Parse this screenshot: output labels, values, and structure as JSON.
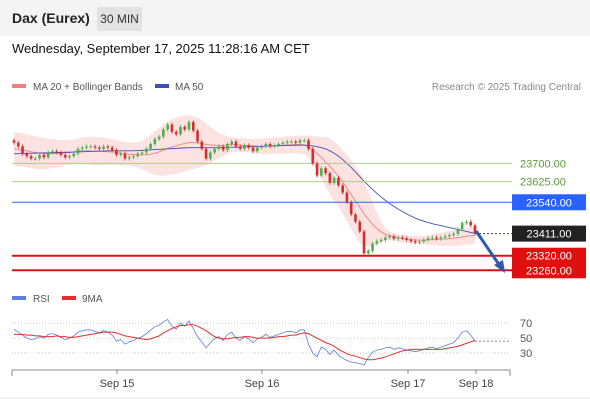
{
  "header": {
    "title": "Dax (Eurex)",
    "timeframe": "30 MIN",
    "datetime": "Wednesday, September 17, 2025 11:28:16 AM CET"
  },
  "colors": {
    "candle_up": "#4caf50",
    "candle_down": "#d32f2f",
    "bollinger_fill": "#fde2e2",
    "ma20": "#f08080",
    "ma50": "#3f51b5",
    "resistance": "#a8d08d",
    "pivot": "#2962ff",
    "support": "#e01010",
    "last": "#222222",
    "arrow": "#2a5caa",
    "rsi": "#5b7fdc",
    "rsi_ma": "#e03030"
  },
  "chart_data": [
    {
      "type": "candlestick",
      "title": "",
      "legend": [
        {
          "label": "MA 20 + Bollinger Bands",
          "color": "#f08080"
        },
        {
          "label": "MA 50",
          "color": "#3f51b5"
        }
      ],
      "credit": "Research © 2025 Trading Central",
      "x_ticks": [
        "Sep 15",
        "Sep 16",
        "Sep 17",
        "Sep 18"
      ],
      "levels": [
        {
          "label": "23700.00",
          "value": 23700,
          "kind": "resistance"
        },
        {
          "label": "23625.00",
          "value": 23625,
          "kind": "resistance"
        },
        {
          "label": "23540.00",
          "value": 23540,
          "kind": "pivot"
        },
        {
          "label": "23411.00",
          "value": 23411,
          "kind": "last"
        },
        {
          "label": "23320.00",
          "value": 23320,
          "kind": "support"
        },
        {
          "label": "23260.00",
          "value": 23260,
          "kind": "support"
        }
      ],
      "ylim": [
        23220,
        23920
      ],
      "close": [
        23785,
        23770,
        23740,
        23730,
        23720,
        23720,
        23735,
        23725,
        23745,
        23750,
        23745,
        23735,
        23725,
        23730,
        23740,
        23760,
        23765,
        23770,
        23770,
        23765,
        23760,
        23770,
        23765,
        23755,
        23735,
        23740,
        23720,
        23725,
        23730,
        23740,
        23745,
        23760,
        23780,
        23800,
        23810,
        23840,
        23860,
        23830,
        23820,
        23850,
        23840,
        23870,
        23835,
        23790,
        23760,
        23720,
        23745,
        23760,
        23770,
        23755,
        23780,
        23790,
        23770,
        23760,
        23775,
        23765,
        23750,
        23765,
        23770,
        23780,
        23770,
        23775,
        23780,
        23785,
        23790,
        23790,
        23785,
        23795,
        23795,
        23760,
        23700,
        23650,
        23680,
        23660,
        23620,
        23640,
        23610,
        23580,
        23540,
        23490,
        23460,
        23420,
        23330,
        23340,
        23370,
        23380,
        23385,
        23395,
        23400,
        23390,
        23395,
        23392,
        23385,
        23380,
        23375,
        23378,
        23385,
        23392,
        23395,
        23390,
        23395,
        23400,
        23405,
        23410,
        23430,
        23455,
        23460,
        23445,
        23411
      ],
      "ma20": [
        23760,
        23758,
        23755,
        23752,
        23748,
        23745,
        23742,
        23740,
        23740,
        23740,
        23740,
        23742,
        23745,
        23745,
        23748,
        23750,
        23752,
        23752,
        23752,
        23750,
        23750,
        23749,
        23748,
        23747,
        23745,
        23742,
        23740,
        23738,
        23737,
        23736,
        23735,
        23736,
        23738,
        23742,
        23748,
        23755,
        23762,
        23768,
        23772,
        23778,
        23782,
        23786,
        23786,
        23785,
        23782,
        23778,
        23776,
        23775,
        23774,
        23774,
        23776,
        23778,
        23778,
        23776,
        23774,
        23773,
        23772,
        23771,
        23770,
        23771,
        23772,
        23773,
        23774,
        23775,
        23776,
        23777,
        23778,
        23778,
        23776,
        23770,
        23755,
        23740,
        23725,
        23705,
        23688,
        23668,
        23648,
        23625,
        23598,
        23572,
        23545,
        23520,
        23492,
        23470,
        23450,
        23432,
        23418,
        23408,
        23402,
        23398,
        23394,
        23390,
        23388,
        23386,
        23385,
        23384,
        23384,
        23385,
        23386,
        23387,
        23388,
        23389,
        23390,
        23392,
        23394,
        23397,
        23400,
        23402,
        23404
      ],
      "bollinger_upper": [
        23830,
        23827,
        23824,
        23820,
        23816,
        23812,
        23808,
        23805,
        23802,
        23800,
        23798,
        23797,
        23796,
        23796,
        23798,
        23802,
        23806,
        23809,
        23810,
        23810,
        23808,
        23806,
        23803,
        23800,
        23796,
        23792,
        23788,
        23786,
        23786,
        23788,
        23794,
        23804,
        23818,
        23832,
        23846,
        23860,
        23872,
        23881,
        23888,
        23893,
        23897,
        23898,
        23895,
        23888,
        23878,
        23864,
        23850,
        23838,
        23826,
        23818,
        23812,
        23808,
        23806,
        23804,
        23802,
        23800,
        23800,
        23801,
        23802,
        23803,
        23804,
        23806,
        23808,
        23810,
        23812,
        23813,
        23814,
        23815,
        23815,
        23815,
        23813,
        23810,
        23810,
        23808,
        23802,
        23790,
        23774,
        23755,
        23735,
        23714,
        23690,
        23665,
        23625,
        23582,
        23540,
        23498,
        23462,
        23435,
        23420,
        23414,
        23410,
        23406,
        23404,
        23402,
        23401,
        23401,
        23402,
        23405,
        23409,
        23412,
        23415,
        23419,
        23422,
        23425,
        23428,
        23431,
        23434,
        23437,
        23440
      ],
      "bollinger_lower": [
        23690,
        23689,
        23686,
        23684,
        23680,
        23678,
        23676,
        23675,
        23678,
        23680,
        23682,
        23687,
        23694,
        23694,
        23698,
        23698,
        23698,
        23695,
        23694,
        23690,
        23692,
        23692,
        23693,
        23694,
        23694,
        23692,
        23692,
        23690,
        23688,
        23684,
        23676,
        23668,
        23658,
        23652,
        23650,
        23650,
        23652,
        23655,
        23656,
        23663,
        23667,
        23674,
        23677,
        23682,
        23686,
        23692,
        23702,
        23712,
        23722,
        23730,
        23740,
        23748,
        23750,
        23748,
        23746,
        23746,
        23744,
        23741,
        23738,
        23739,
        23740,
        23740,
        23740,
        23740,
        23740,
        23741,
        23742,
        23741,
        23737,
        23725,
        23697,
        23670,
        23640,
        23602,
        23574,
        23546,
        23522,
        23495,
        23461,
        23430,
        23400,
        23375,
        23359,
        23358,
        23360,
        23366,
        23374,
        23381,
        23384,
        23382,
        23378,
        23374,
        23372,
        23370,
        23369,
        23367,
        23366,
        23365,
        23363,
        23362,
        23361,
        23359,
        23358,
        23359,
        23360,
        23363,
        23366,
        23367,
        23368
      ],
      "ma50": [
        23740,
        23740,
        23741,
        23741,
        23742,
        23742,
        23743,
        23743,
        23744,
        23744,
        23745,
        23745,
        23746,
        23746,
        23747,
        23748,
        23748,
        23749,
        23750,
        23750,
        23751,
        23751,
        23752,
        23752,
        23752,
        23752,
        23752,
        23752,
        23752,
        23753,
        23754,
        23755,
        23756,
        23757,
        23758,
        23759,
        23760,
        23761,
        23762,
        23763,
        23764,
        23765,
        23765,
        23765,
        23765,
        23765,
        23765,
        23765,
        23765,
        23766,
        23766,
        23767,
        23767,
        23768,
        23768,
        23769,
        23769,
        23770,
        23770,
        23771,
        23772,
        23772,
        23773,
        23773,
        23774,
        23774,
        23775,
        23775,
        23775,
        23774,
        23772,
        23769,
        23765,
        23760,
        23752,
        23742,
        23730,
        23716,
        23700,
        23683,
        23665,
        23646,
        23627,
        23610,
        23593,
        23577,
        23562,
        23548,
        23535,
        23523,
        23512,
        23502,
        23492,
        23483,
        23475,
        23468,
        23462,
        23457,
        23452,
        23448,
        23444,
        23440,
        23436,
        23432,
        23428,
        23424,
        23420,
        23416,
        23412
      ]
    },
    {
      "type": "line",
      "title": "",
      "legend": [
        {
          "label": "RSI",
          "color": "#5b7fdc"
        },
        {
          "label": "9MA",
          "color": "#e03030"
        }
      ],
      "y_ticks": [
        30,
        50,
        70
      ],
      "ylim": [
        10,
        85
      ],
      "rsi": [
        62,
        58,
        54,
        50,
        48,
        49,
        52,
        50,
        55,
        56,
        54,
        51,
        48,
        50,
        53,
        58,
        60,
        61,
        61,
        59,
        57,
        60,
        58,
        54,
        46,
        48,
        42,
        45,
        47,
        50,
        52,
        56,
        61,
        65,
        67,
        72,
        75,
        66,
        62,
        70,
        66,
        73,
        63,
        52,
        45,
        37,
        44,
        49,
        52,
        47,
        55,
        58,
        50,
        47,
        52,
        49,
        44,
        49,
        51,
        55,
        51,
        53,
        55,
        57,
        59,
        59,
        57,
        61,
        61,
        42,
        30,
        25,
        38,
        35,
        28,
        34,
        27,
        23,
        20,
        18,
        17,
        16,
        14,
        24,
        31,
        34,
        35,
        37,
        38,
        35,
        37,
        36,
        34,
        33,
        32,
        33,
        35,
        37,
        38,
        36,
        38,
        40,
        42,
        44,
        50,
        58,
        60,
        54,
        46
      ],
      "rsi_ma": [
        55,
        55,
        55,
        54,
        54,
        53,
        53,
        52,
        52,
        52,
        53,
        52,
        52,
        51,
        51,
        52,
        53,
        54,
        55,
        56,
        57,
        58,
        58,
        58,
        57,
        55,
        53,
        52,
        51,
        50,
        49,
        48,
        49,
        51,
        53,
        57,
        60,
        63,
        65,
        67,
        67,
        68,
        68,
        66,
        63,
        60,
        56,
        52,
        50,
        49,
        49,
        50,
        51,
        51,
        52,
        52,
        51,
        50,
        50,
        50,
        50,
        51,
        52,
        52,
        53,
        54,
        54,
        56,
        57,
        56,
        53,
        50,
        47,
        44,
        42,
        39,
        35,
        32,
        29,
        27,
        26,
        24,
        22,
        21,
        21,
        22,
        23,
        25,
        27,
        29,
        31,
        33,
        34,
        35,
        35,
        35,
        35,
        35,
        35,
        35,
        35,
        36,
        37,
        38,
        39,
        41,
        43,
        45,
        47
      ],
      "x_ticks": [
        "Sep 15",
        "Sep 16",
        "Sep 17",
        "Sep 18"
      ]
    }
  ]
}
